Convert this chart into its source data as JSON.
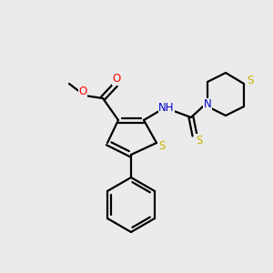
{
  "bg_color": "#ebebeb",
  "bond_color": "#000000",
  "atom_colors": {
    "S": "#c8b400",
    "O": "#ff0000",
    "N": "#0000cd",
    "C": "#000000"
  },
  "figsize": [
    3.0,
    3.0
  ],
  "dpi": 100,
  "lw": 1.6,
  "sep": 2.5,
  "fontsize": 8.5
}
